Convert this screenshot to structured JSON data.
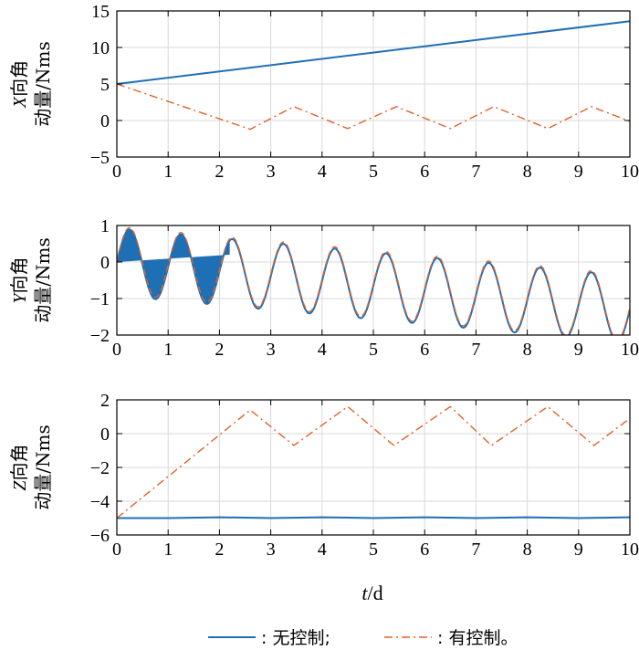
{
  "colors": {
    "no_control": "#1f6fb5",
    "with_control": "#e0622a",
    "grid": "#d9d9d9",
    "axis": "#000000"
  },
  "x_axis_label": {
    "var": "t",
    "sep": "/",
    "unit": "d"
  },
  "legend": {
    "no_control": ": 无控制;",
    "with_control": ": 有控制。"
  },
  "chart_data": [
    {
      "type": "line",
      "id": "x",
      "ylabel": {
        "var": "X",
        "line1_rest": "向角",
        "line2": "动量/Nms"
      },
      "xlim": [
        0,
        10
      ],
      "ylim": [
        -5,
        15
      ],
      "xticks": [
        0,
        1,
        2,
        3,
        4,
        5,
        6,
        7,
        8,
        9,
        10
      ],
      "yticks": [
        -5,
        0,
        5,
        10,
        15
      ],
      "grid": true,
      "series": [
        {
          "key": "no_control",
          "style": "solid",
          "x": [
            0,
            10
          ],
          "y": [
            5.0,
            13.6
          ]
        },
        {
          "key": "with_control",
          "style": "dashdot",
          "x": [
            0,
            2.6,
            3.45,
            4.5,
            5.45,
            6.5,
            7.35,
            8.4,
            9.25,
            10
          ],
          "y": [
            5.0,
            -1.2,
            1.9,
            -1.1,
            1.9,
            -1.1,
            1.9,
            -1.1,
            1.9,
            -0.1
          ]
        }
      ]
    },
    {
      "type": "line",
      "id": "y",
      "ylabel": {
        "var": "Y",
        "line1_rest": "向角",
        "line2": "动量/Nms"
      },
      "xlim": [
        0,
        10
      ],
      "ylim": [
        -2,
        1
      ],
      "xticks": [
        0,
        1,
        2,
        3,
        4,
        5,
        6,
        7,
        8,
        9,
        10
      ],
      "yticks": [
        -2,
        -1,
        0,
        1
      ],
      "grid": true,
      "series": [
        {
          "key": "no_control",
          "style": "solid",
          "func": {
            "amplitude": 0.92,
            "period": 1.0,
            "phase": 0.25,
            "offset_start": 0.0,
            "drift_per_day": -0.13
          },
          "x_range": [
            0,
            10
          ]
        },
        {
          "key": "with_control",
          "style": "dashed",
          "func": {
            "amplitude": 0.92,
            "period": 1.0,
            "phase": 0.25,
            "offset_start": 0.05,
            "drift_per_day": -0.13
          },
          "x_range": [
            0,
            10
          ]
        }
      ],
      "filled_region": {
        "x_range": [
          0,
          2.2
        ],
        "baseline": [
          [
            0,
            0
          ],
          [
            2.2,
            0.2
          ]
        ]
      }
    },
    {
      "type": "line",
      "id": "z",
      "ylabel": {
        "var": "Z",
        "line1_rest": "向角",
        "line2": "动量/Nms"
      },
      "xlim": [
        0,
        10
      ],
      "ylim": [
        -6,
        2
      ],
      "xticks": [
        0,
        1,
        2,
        3,
        4,
        5,
        6,
        7,
        8,
        9,
        10
      ],
      "yticks": [
        -6,
        -4,
        -2,
        0,
        2
      ],
      "grid": true,
      "series": [
        {
          "key": "no_control",
          "style": "solid",
          "x": [
            0,
            1,
            2,
            3,
            4,
            5,
            6,
            7,
            8,
            9,
            10
          ],
          "y": [
            -5.0,
            -5.0,
            -4.95,
            -5.0,
            -4.95,
            -5.0,
            -4.95,
            -5.0,
            -4.95,
            -5.0,
            -4.95
          ]
        },
        {
          "key": "with_control",
          "style": "dashdot",
          "x": [
            0,
            2.6,
            3.45,
            4.5,
            5.4,
            6.5,
            7.3,
            8.4,
            9.3,
            10
          ],
          "y": [
            -5.0,
            1.4,
            -0.7,
            1.6,
            -0.7,
            1.6,
            -0.7,
            1.6,
            -0.7,
            0.9
          ]
        }
      ]
    }
  ]
}
